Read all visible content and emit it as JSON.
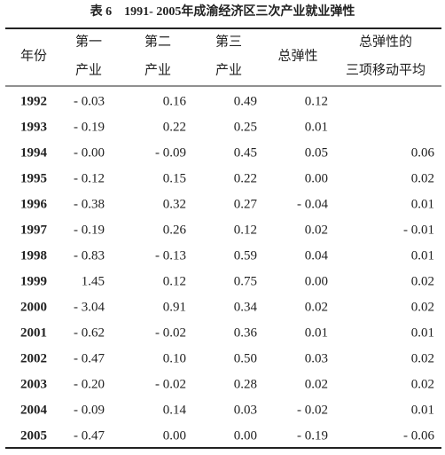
{
  "title": "表 6　1991- 2005年成渝经济区三次产业就业弹性",
  "table": {
    "headers": [
      [
        "年份"
      ],
      [
        "第一",
        "产业"
      ],
      [
        "第二",
        "产业"
      ],
      [
        "第三",
        "产业"
      ],
      [
        "总弹性"
      ],
      [
        "总弹性的",
        "三项移动平均"
      ]
    ],
    "rows": [
      [
        "1992",
        "- 0.03",
        "0.16",
        "0.49",
        "0.12",
        null
      ],
      [
        "1993",
        "- 0.19",
        "0.22",
        "0.25",
        "0.01",
        null
      ],
      [
        "1994",
        "- 0.00",
        "- 0.09",
        "0.45",
        "0.05",
        "0.06"
      ],
      [
        "1995",
        "- 0.12",
        "0.15",
        "0.22",
        "0.00",
        "0.02"
      ],
      [
        "1996",
        "- 0.38",
        "0.32",
        "0.27",
        "- 0.04",
        "0.01"
      ],
      [
        "1997",
        "- 0.19",
        "0.26",
        "0.12",
        "0.02",
        "- 0.01"
      ],
      [
        "1998",
        "- 0.83",
        "- 0.13",
        "0.59",
        "0.04",
        "0.01"
      ],
      [
        "1999",
        "1.45",
        "0.12",
        "0.75",
        "0.00",
        "0.02"
      ],
      [
        "2000",
        "- 3.04",
        "0.91",
        "0.34",
        "0.02",
        "0.02"
      ],
      [
        "2001",
        "- 0.62",
        "- 0.02",
        "0.36",
        "0.01",
        "0.01"
      ],
      [
        "2002",
        "- 0.47",
        "0.10",
        "0.50",
        "0.03",
        "0.02"
      ],
      [
        "2003",
        "- 0.20",
        "- 0.02",
        "0.28",
        "0.02",
        "0.02"
      ],
      [
        "2004",
        "- 0.09",
        "0.14",
        "0.03",
        "- 0.02",
        "0.01"
      ],
      [
        "2005",
        "- 0.47",
        "0.00",
        "0.00",
        "- 0.19",
        "- 0.06"
      ]
    ]
  }
}
